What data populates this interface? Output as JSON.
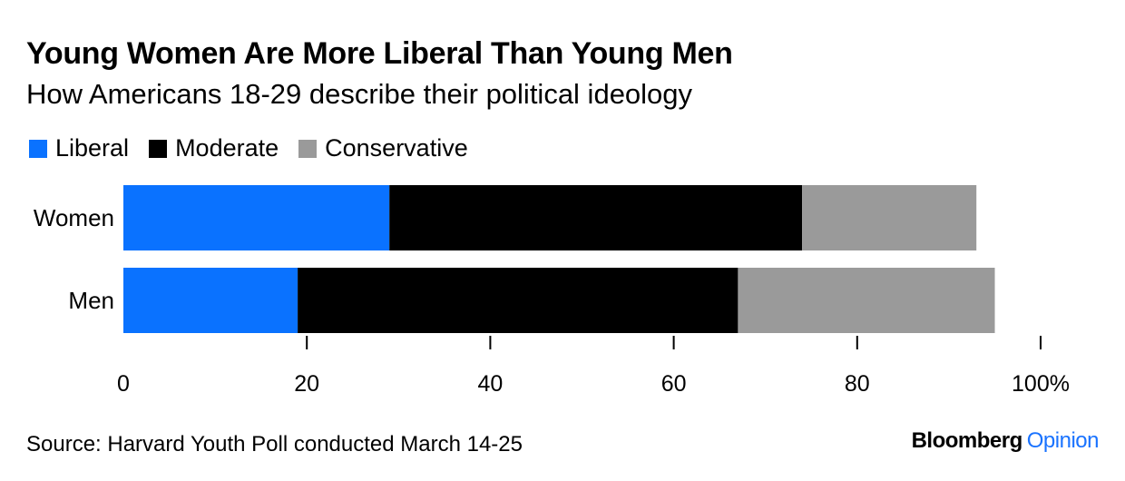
{
  "title": "Young Women Are More Liberal Than Young Men",
  "subtitle": "How Americans 18-29 describe their political ideology",
  "legend": [
    {
      "label": "Liberal",
      "color": "#0a72ff"
    },
    {
      "label": "Moderate",
      "color": "#000000"
    },
    {
      "label": "Conservative",
      "color": "#9a9a9a"
    }
  ],
  "source": "Source: Harvard Youth Poll conducted March 14-25",
  "brand": {
    "name": "Bloomberg",
    "section": "Opinion"
  },
  "chart_data": {
    "type": "bar",
    "orientation": "horizontal",
    "stacked": true,
    "categories": [
      "Women",
      "Men"
    ],
    "series": [
      {
        "name": "Liberal",
        "color": "#0a72ff",
        "values": [
          29,
          19
        ]
      },
      {
        "name": "Moderate",
        "color": "#000000",
        "values": [
          45,
          48
        ]
      },
      {
        "name": "Conservative",
        "color": "#9a9a9a",
        "values": [
          19,
          28
        ]
      }
    ],
    "xlim": [
      0,
      100
    ],
    "xticks": [
      0,
      20,
      40,
      60,
      80,
      100
    ],
    "xtick_labels": [
      "0",
      "20",
      "40",
      "60",
      "80",
      "100%"
    ],
    "xlabel": "",
    "ylabel": "",
    "grid": false
  }
}
